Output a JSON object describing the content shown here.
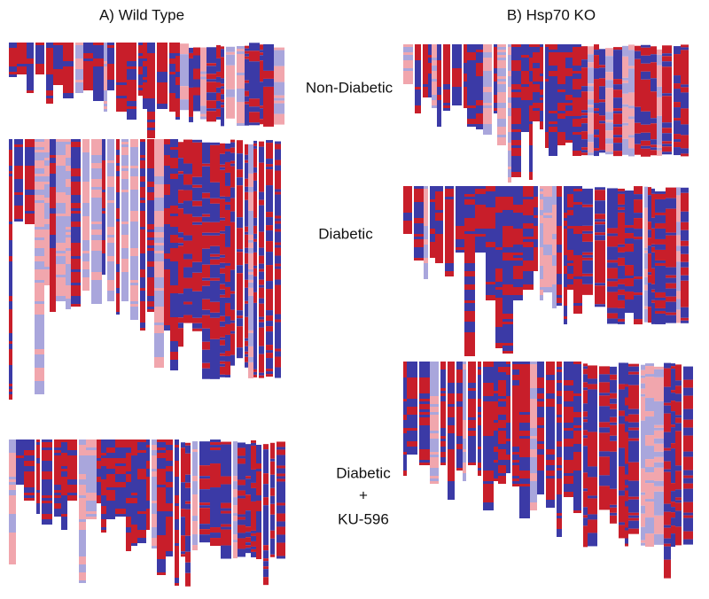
{
  "columns": [
    {
      "title": "A) Wild Type"
    },
    {
      "title": "B) Hsp70 KO"
    }
  ],
  "conditions": [
    {
      "label": "Non-Diabetic"
    },
    {
      "label": "Diabetic"
    },
    {
      "lines": [
        "Diabetic",
        "+",
        "KU-596"
      ]
    }
  ]
}
